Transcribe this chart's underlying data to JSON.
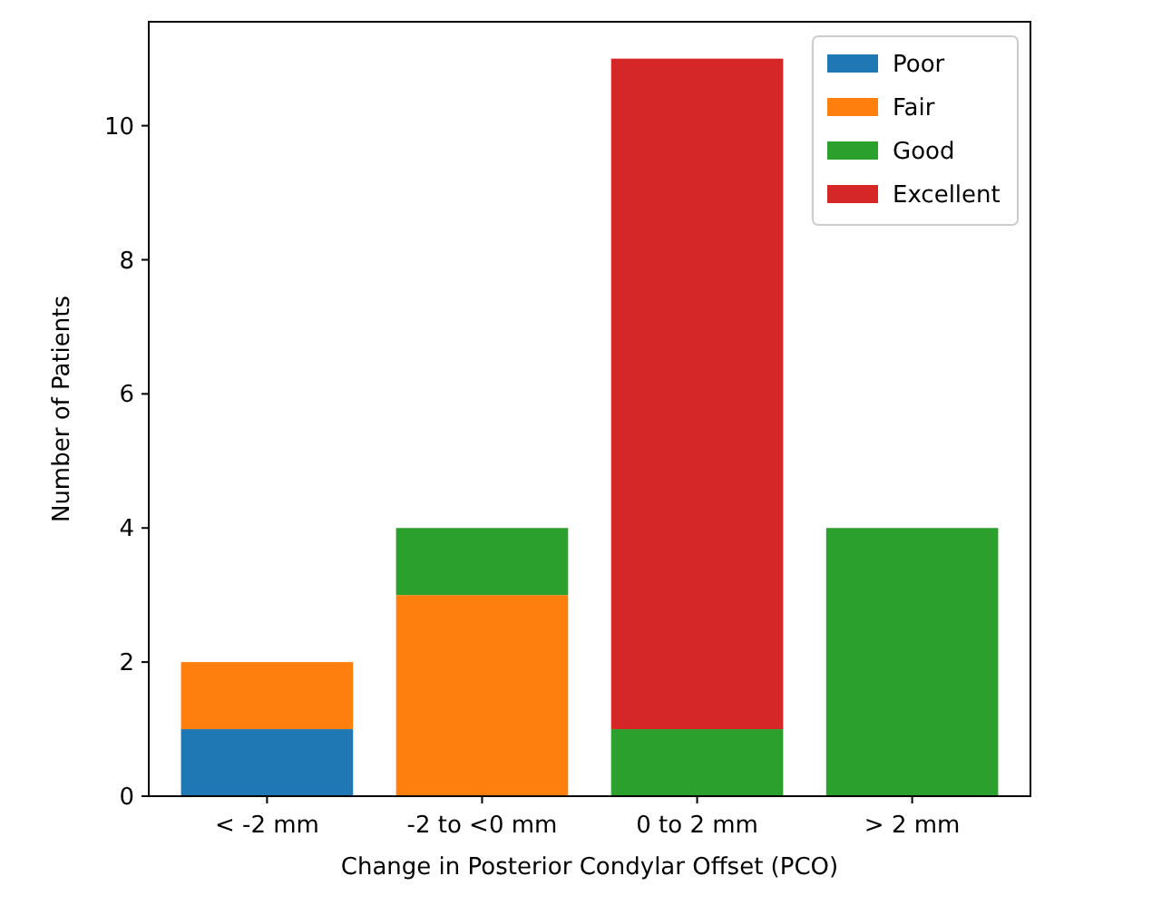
{
  "chart_data": {
    "type": "bar",
    "stacked": true,
    "xlabel": "Change in Posterior Condylar Offset (PCO)",
    "ylabel": "Number of Patients",
    "categories": [
      "< -2 mm",
      "-2 to <0 mm",
      "0 to 2 mm",
      "> 2 mm"
    ],
    "series": [
      {
        "name": "Poor",
        "color": "#1f77b4",
        "values": [
          1,
          0,
          0,
          0
        ]
      },
      {
        "name": "Fair",
        "color": "#ff7f0e",
        "values": [
          1,
          3,
          0,
          0
        ]
      },
      {
        "name": "Good",
        "color": "#2ca02c",
        "values": [
          0,
          1,
          1,
          4
        ]
      },
      {
        "name": "Excellent",
        "color": "#d62728",
        "values": [
          0,
          0,
          10,
          0
        ]
      }
    ],
    "ylim": [
      0,
      11.55
    ],
    "yticks": [
      0,
      2,
      4,
      6,
      8,
      10
    ],
    "grid": false,
    "legend": "top right"
  }
}
